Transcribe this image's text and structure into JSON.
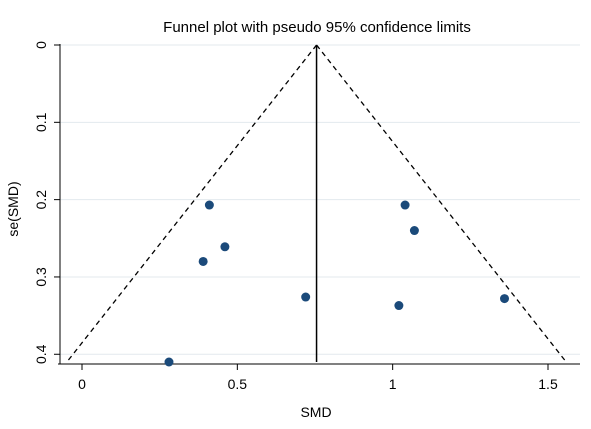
{
  "chart_data": {
    "type": "scatter",
    "title": "Funnel plot with pseudo 95% confidence limits",
    "xlabel": "SMD",
    "ylabel": "se(SMD)",
    "xlim": [
      -0.05,
      1.57
    ],
    "ylim": [
      0,
      0.41
    ],
    "y_axis_reversed": true,
    "x_ticks": [
      0,
      0.5,
      1,
      1.5
    ],
    "x_tick_labels": [
      "0",
      "0.5",
      "1",
      "1.5"
    ],
    "y_ticks": [
      0,
      0.1,
      0.2,
      0.3,
      0.4
    ],
    "y_tick_labels": [
      "0",
      "0.1",
      "0.2",
      "0.3",
      "0.4"
    ],
    "grid": "horizontal",
    "pooled_estimate": 0.755,
    "funnel_max_se": 0.41,
    "marker_color": "#1b4a7a",
    "points": [
      {
        "x": 0.41,
        "y": 0.207
      },
      {
        "x": 0.46,
        "y": 0.261
      },
      {
        "x": 0.39,
        "y": 0.28
      },
      {
        "x": 0.72,
        "y": 0.326
      },
      {
        "x": 0.28,
        "y": 0.41
      },
      {
        "x": 1.04,
        "y": 0.207
      },
      {
        "x": 1.07,
        "y": 0.24
      },
      {
        "x": 1.02,
        "y": 0.337
      },
      {
        "x": 1.36,
        "y": 0.328
      }
    ]
  }
}
